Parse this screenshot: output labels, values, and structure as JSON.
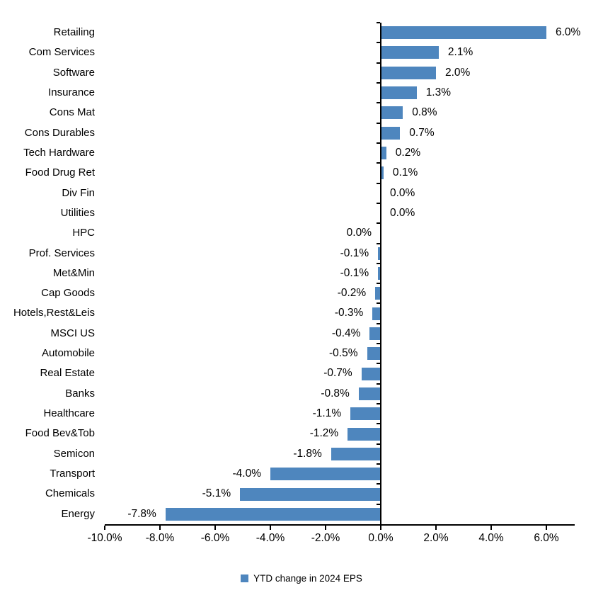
{
  "chart_data": {
    "type": "bar",
    "orientation": "horizontal",
    "title": "",
    "series_name": "YTD change in 2024 EPS",
    "categories": [
      "Retailing",
      "Com Services",
      "Software",
      "Insurance",
      "Cons Mat",
      "Cons Durables",
      "Tech Hardware",
      "Food Drug Ret",
      "Div Fin",
      "Utilities",
      "HPC",
      "Prof. Services",
      "Met&Min",
      "Cap Goods",
      "Hotels,Rest&Leis",
      "MSCI US",
      "Automobile",
      "Real Estate",
      "Banks",
      "Healthcare",
      "Food Bev&Tob",
      "Semicon",
      "Transport",
      "Chemicals",
      "Energy"
    ],
    "values": [
      6.0,
      2.1,
      2.0,
      1.3,
      0.8,
      0.7,
      0.2,
      0.1,
      0.0,
      0.0,
      0.0,
      -0.1,
      -0.1,
      -0.2,
      -0.3,
      -0.4,
      -0.5,
      -0.7,
      -0.8,
      -1.1,
      -1.2,
      -1.8,
      -4.0,
      -5.1,
      -7.8
    ],
    "value_labels": [
      "6.0%",
      "2.1%",
      "2.0%",
      "1.3%",
      "0.8%",
      "0.7%",
      "0.2%",
      "0.1%",
      "0.0%",
      "0.0%",
      "0.0%",
      "-0.1%",
      "-0.1%",
      "-0.2%",
      "-0.3%",
      "-0.4%",
      "-0.5%",
      "-0.7%",
      "-0.8%",
      "-1.1%",
      "-1.2%",
      "-1.8%",
      "-4.0%",
      "-5.1%",
      "-7.8%"
    ],
    "label_sides": [
      "right",
      "right",
      "right",
      "right",
      "right",
      "right",
      "right",
      "right",
      "right",
      "right",
      "left",
      "left",
      "left",
      "left",
      "left",
      "left",
      "left",
      "left",
      "left",
      "left",
      "left",
      "left",
      "left",
      "left",
      "left"
    ],
    "x_tick_values": [
      -10,
      -8,
      -6,
      -4,
      -2,
      0,
      2,
      4,
      6
    ],
    "x_tick_labels": [
      "-10.0%",
      "-8.0%",
      "-6.0%",
      "-4.0%",
      "-2.0%",
      "0.0%",
      "2.0%",
      "4.0%",
      "6.0%"
    ],
    "xlim": [
      -10,
      7
    ],
    "grid": "off",
    "bar_color": "#4E86BE",
    "axis_color": "#000000",
    "legend": {
      "label": "YTD change in 2024 EPS",
      "position": "bottom",
      "swatch_color": "#4E86BE"
    }
  }
}
